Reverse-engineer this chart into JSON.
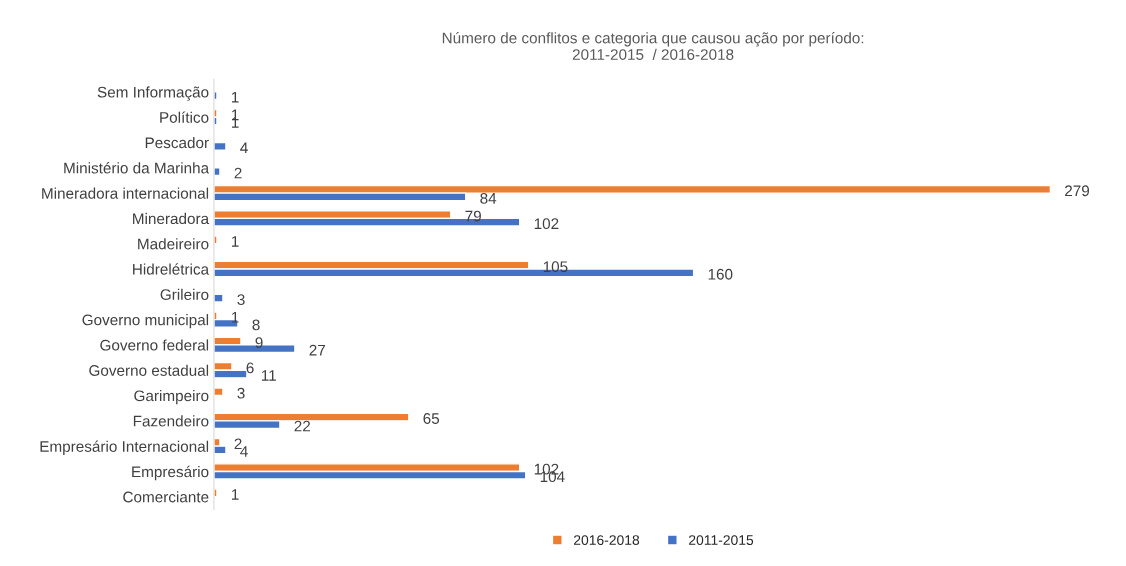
{
  "chart_data": {
    "type": "bar",
    "orientation": "horizontal",
    "title": "Número de conflitos e categoria que causou ação por período:\n2011-2015  / 2016-2018",
    "categories": [
      "Sem Informação",
      "Político",
      "Pescador",
      "Ministério da Marinha",
      "Mineradora internacional",
      "Mineradora",
      "Madeireiro",
      "Hidrelétrica",
      "Grileiro",
      "Governo municipal",
      "Governo federal",
      "Governo estadual",
      "Garimpeiro",
      "Fazendeiro",
      "Empresário Internacional",
      "Empresário",
      "Comerciante"
    ],
    "series": [
      {
        "name": "2016-2018",
        "color": "#ed7d31",
        "values": [
          null,
          1,
          null,
          null,
          279,
          79,
          1,
          105,
          null,
          1,
          9,
          6,
          3,
          65,
          2,
          102,
          1
        ]
      },
      {
        "name": "2011-2015",
        "color": "#4472c4",
        "values": [
          1,
          1,
          4,
          2,
          84,
          102,
          null,
          160,
          3,
          8,
          27,
          11,
          null,
          22,
          4,
          104,
          null
        ]
      }
    ],
    "data_labels": true,
    "legend": "bottom",
    "grid": false
  }
}
